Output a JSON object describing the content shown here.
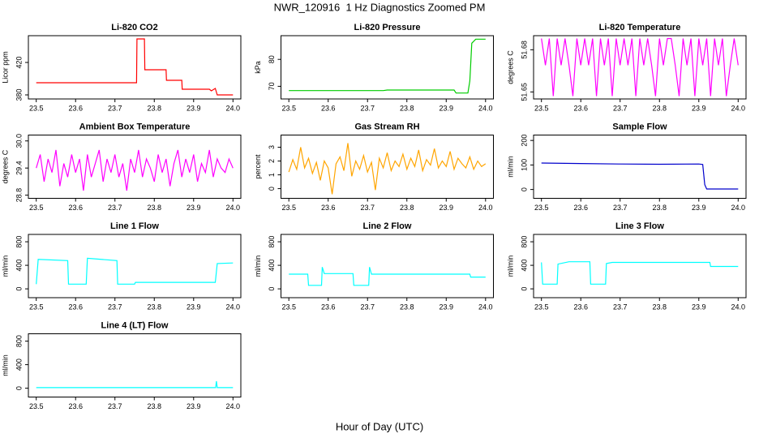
{
  "title": "NWR_120916  1 Hz Diagnostics Zoomed PM",
  "xlabel": "Hour of Day (UTC)",
  "chart_data": [
    {
      "type": "line",
      "title": "Li-820 CO2",
      "ylabel": "Licor ppm",
      "color": "#ff0000",
      "x": [
        23.5,
        23.755,
        23.756,
        23.775,
        23.776,
        23.83,
        23.831,
        23.87,
        23.871,
        23.94,
        23.945,
        23.955,
        23.96,
        24.0
      ],
      "values": [
        395,
        395,
        449,
        449,
        411,
        411,
        398,
        398,
        387,
        387,
        385,
        388,
        380,
        380
      ],
      "xlim": [
        23.48,
        24.02
      ],
      "ylim": [
        375,
        453
      ],
      "xticks": [
        23.5,
        23.6,
        23.7,
        23.8,
        23.9,
        {
          "value": 24,
          "label": "24.0"
        }
      ],
      "yticks": [
        380,
        420
      ]
    },
    {
      "type": "line",
      "title": "Li-820 Pressure",
      "ylabel": "kPa",
      "color": "#00cc00",
      "x": [
        23.5,
        23.74,
        23.75,
        23.92,
        23.925,
        23.955,
        23.96,
        23.965,
        23.975,
        24.0
      ],
      "values": [
        68.4,
        68.4,
        68.6,
        68.6,
        67.5,
        67.5,
        72,
        86,
        87.5,
        87.5
      ],
      "xlim": [
        23.48,
        24.02
      ],
      "ylim": [
        65.3,
        88.8
      ],
      "xticks": [
        23.5,
        23.6,
        23.7,
        23.8,
        23.9,
        {
          "value": 24,
          "label": "24.0"
        }
      ],
      "yticks": [
        70,
        80
      ]
    },
    {
      "type": "line",
      "title": "Li-820 Temperature",
      "ylabel": "degrees C",
      "color": "#ff00ff",
      "x": [
        23.5,
        23.51,
        23.52,
        23.53,
        23.54,
        23.55,
        23.56,
        23.57,
        23.58,
        23.59,
        23.6,
        23.61,
        23.62,
        23.63,
        23.64,
        23.65,
        23.66,
        23.67,
        23.68,
        23.69,
        23.7,
        23.71,
        23.72,
        23.73,
        23.74,
        23.75,
        23.76,
        23.77,
        23.78,
        23.79,
        23.8,
        23.81,
        23.82,
        23.83,
        23.84,
        23.85,
        23.86,
        23.87,
        23.88,
        23.89,
        23.9,
        23.91,
        23.92,
        23.93,
        23.94,
        23.95,
        23.96,
        23.97,
        23.98,
        23.99,
        24.0
      ],
      "values": [
        51.688,
        51.669,
        51.688,
        51.647,
        51.688,
        51.669,
        51.688,
        51.669,
        51.647,
        51.688,
        51.669,
        51.688,
        51.669,
        51.688,
        51.647,
        51.688,
        51.669,
        51.688,
        51.647,
        51.688,
        51.669,
        51.688,
        51.669,
        51.688,
        51.647,
        51.688,
        51.669,
        51.688,
        51.669,
        51.647,
        51.688,
        51.669,
        51.688,
        51.688,
        51.669,
        51.647,
        51.688,
        51.669,
        51.688,
        51.647,
        51.688,
        51.669,
        51.688,
        51.647,
        51.688,
        51.669,
        51.688,
        51.647,
        51.669,
        51.688,
        51.669
      ],
      "xlim": [
        23.48,
        24.02
      ],
      "ylim": [
        51.645,
        51.69
      ],
      "xticks": [
        23.5,
        23.6,
        23.7,
        23.8,
        23.9,
        {
          "value": 24,
          "label": "24.0"
        }
      ],
      "yticks": [
        51.65,
        51.68
      ]
    },
    {
      "type": "line",
      "title": "Ambient Box Temperature",
      "ylabel": "degrees C",
      "color": "#ff00ff",
      "x": [
        23.5,
        23.51,
        23.52,
        23.53,
        23.54,
        23.55,
        23.56,
        23.57,
        23.58,
        23.59,
        23.6,
        23.61,
        23.62,
        23.63,
        23.64,
        23.65,
        23.66,
        23.67,
        23.68,
        23.69,
        23.7,
        23.71,
        23.72,
        23.73,
        23.74,
        23.75,
        23.76,
        23.77,
        23.78,
        23.79,
        23.8,
        23.81,
        23.82,
        23.83,
        23.84,
        23.85,
        23.86,
        23.87,
        23.88,
        23.89,
        23.9,
        23.91,
        23.92,
        23.93,
        23.94,
        23.95,
        23.96,
        23.97,
        23.98,
        23.99,
        24.0
      ],
      "values": [
        29.4,
        29.7,
        29.1,
        29.6,
        29.3,
        29.8,
        29.0,
        29.5,
        29.2,
        29.7,
        29.3,
        29.6,
        28.9,
        29.7,
        29.2,
        29.5,
        29.8,
        29.1,
        29.6,
        29.3,
        29.7,
        29.2,
        29.5,
        28.9,
        29.6,
        29.3,
        29.8,
        29.2,
        29.6,
        29.4,
        29.1,
        29.7,
        29.3,
        29.6,
        29.0,
        29.5,
        29.8,
        29.2,
        29.6,
        29.3,
        29.7,
        29.1,
        29.5,
        29.3,
        29.8,
        29.2,
        29.6,
        29.4,
        29.3,
        29.6,
        29.4
      ],
      "xlim": [
        23.48,
        24.02
      ],
      "ylim": [
        28.73,
        30.13
      ],
      "xticks": [
        23.5,
        23.6,
        23.7,
        23.8,
        23.9,
        {
          "value": 24,
          "label": "24.0"
        }
      ],
      "yticks": [
        28.8,
        29.4,
        {
          "value": 30,
          "label": "30.0"
        }
      ]
    },
    {
      "type": "line",
      "title": "Gas Stream RH",
      "ylabel": "percent",
      "color": "#ffa500",
      "x": [
        23.5,
        23.51,
        23.52,
        23.53,
        23.54,
        23.55,
        23.56,
        23.57,
        23.58,
        23.59,
        23.6,
        23.61,
        23.62,
        23.63,
        23.64,
        23.65,
        23.66,
        23.67,
        23.68,
        23.69,
        23.7,
        23.71,
        23.72,
        23.73,
        23.74,
        23.75,
        23.76,
        23.77,
        23.78,
        23.79,
        23.8,
        23.81,
        23.82,
        23.83,
        23.84,
        23.85,
        23.86,
        23.87,
        23.88,
        23.89,
        23.9,
        23.91,
        23.92,
        23.93,
        23.94,
        23.95,
        23.96,
        23.97,
        23.98,
        23.99,
        24.0
      ],
      "values": [
        1.2,
        2.1,
        1.4,
        3.0,
        1.5,
        2.2,
        1.1,
        1.9,
        0.6,
        2.0,
        1.5,
        -0.4,
        1.8,
        2.3,
        1.3,
        3.3,
        0.9,
        2.0,
        1.4,
        2.4,
        1.2,
        1.9,
        -0.1,
        2.2,
        1.5,
        2.6,
        1.3,
        2.0,
        1.6,
        2.5,
        1.4,
        2.2,
        1.6,
        2.8,
        1.3,
        2.1,
        1.7,
        2.9,
        1.5,
        2.0,
        1.6,
        2.7,
        1.4,
        2.2,
        1.8,
        1.5,
        2.3,
        1.4,
        2.0,
        1.6,
        1.8
      ],
      "xlim": [
        23.48,
        24.02
      ],
      "ylim": [
        -0.7,
        3.88
      ],
      "xticks": [
        23.5,
        23.6,
        23.7,
        23.8,
        23.9,
        {
          "value": 24,
          "label": "24.0"
        }
      ],
      "yticks": [
        0,
        1,
        2,
        3
      ]
    },
    {
      "type": "line",
      "title": "Sample Flow",
      "ylabel": "ml/min",
      "color": "#0000cc",
      "x": [
        23.5,
        23.6,
        23.7,
        23.8,
        23.9,
        23.91,
        23.915,
        23.92,
        24.0
      ],
      "values": [
        108,
        106,
        104,
        103,
        104,
        102,
        20,
        2,
        2
      ],
      "xlim": [
        23.48,
        24.02
      ],
      "ylim": [
        -36,
        222
      ],
      "xticks": [
        23.5,
        23.6,
        23.7,
        23.8,
        23.9,
        {
          "value": 24,
          "label": "24.0"
        }
      ],
      "yticks": [
        0,
        100,
        200
      ]
    },
    {
      "type": "line",
      "title": "Line 1 Flow",
      "ylabel": "ml/min",
      "color": "#00ffff",
      "x": [
        23.5,
        23.505,
        23.58,
        23.582,
        23.627,
        23.63,
        23.705,
        23.707,
        23.75,
        23.752,
        23.955,
        23.96,
        24.0
      ],
      "values": [
        80,
        500,
        480,
        80,
        80,
        520,
        480,
        80,
        80,
        110,
        110,
        430,
        440
      ],
      "xlim": [
        23.48,
        24.02
      ],
      "ylim": [
        -150,
        925
      ],
      "xticks": [
        23.5,
        23.6,
        23.7,
        23.8,
        23.9,
        {
          "value": 24,
          "label": "24.0"
        }
      ],
      "yticks": [
        0,
        400,
        800
      ]
    },
    {
      "type": "line",
      "title": "Line 2 Flow",
      "ylabel": "ml/min",
      "color": "#00ffff",
      "x": [
        23.5,
        23.548,
        23.55,
        23.583,
        23.585,
        23.59,
        23.663,
        23.665,
        23.703,
        23.705,
        23.71,
        23.96,
        23.962,
        24.0
      ],
      "values": [
        250,
        250,
        60,
        60,
        370,
        260,
        260,
        60,
        60,
        370,
        250,
        250,
        200,
        200
      ],
      "xlim": [
        23.48,
        24.02
      ],
      "ylim": [
        -150,
        925
      ],
      "xticks": [
        23.5,
        23.6,
        23.7,
        23.8,
        23.9,
        {
          "value": 24,
          "label": "24.0"
        }
      ],
      "yticks": [
        0,
        400,
        800
      ]
    },
    {
      "type": "line",
      "title": "Line 3 Flow",
      "ylabel": "ml/min",
      "color": "#00ffff",
      "x": [
        23.5,
        23.503,
        23.54,
        23.542,
        23.57,
        23.623,
        23.625,
        23.663,
        23.665,
        23.68,
        23.928,
        23.93,
        24.0
      ],
      "values": [
        450,
        80,
        80,
        420,
        460,
        460,
        80,
        80,
        430,
        450,
        450,
        380,
        380
      ],
      "xlim": [
        23.48,
        24.02
      ],
      "ylim": [
        -150,
        925
      ],
      "xticks": [
        23.5,
        23.6,
        23.7,
        23.8,
        23.9,
        {
          "value": 24,
          "label": "24.0"
        }
      ],
      "yticks": [
        0,
        400,
        800
      ]
    },
    {
      "type": "line",
      "title": "Line 4 (LT) Flow",
      "ylabel": "ml/min",
      "color": "#00ffff",
      "x": [
        23.5,
        23.956,
        23.958,
        23.96,
        24.0
      ],
      "values": [
        10,
        10,
        120,
        10,
        10
      ],
      "xlim": [
        23.48,
        24.02
      ],
      "ylim": [
        -150,
        925
      ],
      "xticks": [
        23.5,
        23.6,
        23.7,
        23.8,
        23.9,
        {
          "value": 24,
          "label": "24.0"
        }
      ],
      "yticks": [
        0,
        400,
        800
      ]
    }
  ]
}
